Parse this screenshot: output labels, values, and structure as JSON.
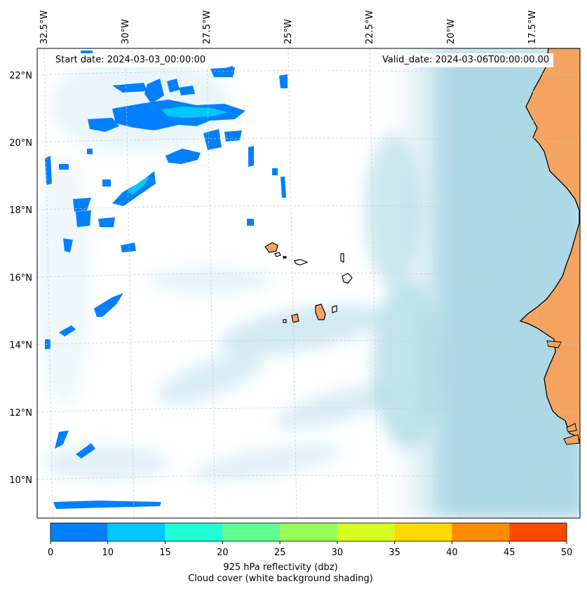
{
  "map": {
    "start_date": "Start date: 2024-03-03_00:00:00",
    "valid_date": "Valid_date: 2024-03-06T00:00:00.00",
    "lon_ticks": [
      {
        "lon": -32.5,
        "label": "32.5°W"
      },
      {
        "lon": -30.0,
        "label": "30°W"
      },
      {
        "lon": -27.5,
        "label": "27.5°W"
      },
      {
        "lon": -25.0,
        "label": "25°W"
      },
      {
        "lon": -22.5,
        "label": "22.5°W"
      },
      {
        "lon": -20.0,
        "label": "20°W"
      },
      {
        "lon": -17.5,
        "label": "17.5°W"
      }
    ],
    "lat_ticks": [
      {
        "lat": 22,
        "label": "22°N"
      },
      {
        "lat": 20,
        "label": "20°N"
      },
      {
        "lat": 18,
        "label": "18°N"
      },
      {
        "lat": 16,
        "label": "16°N"
      },
      {
        "lat": 14,
        "label": "14°N"
      },
      {
        "lat": 12,
        "label": "12°N"
      },
      {
        "lat": 10,
        "label": "10°N"
      }
    ],
    "colors": {
      "land": "#f4a460",
      "cloud": "#add8e6",
      "coastline": "#000000",
      "gridline": "#c8c8c8"
    }
  },
  "colorbar": {
    "boundaries": [
      0,
      10,
      15,
      20,
      25,
      30,
      35,
      40,
      45,
      50
    ],
    "colors": [
      "#0080ff",
      "#00c8ff",
      "#20ffd8",
      "#60ff90",
      "#98ff58",
      "#d8ff20",
      "#ffd800",
      "#ff8c00",
      "#ff4800"
    ],
    "label_line1": "925 hPa reflectivity (dbz)",
    "label_line2": "Cloud cover (white background shading)"
  }
}
